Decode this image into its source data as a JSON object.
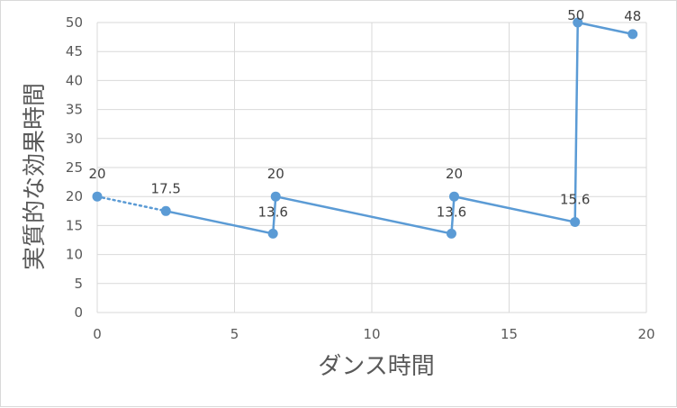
{
  "chart_data": {
    "type": "scatter",
    "title": "",
    "xlabel": "ダンス時間",
    "ylabel": "実質的な効果時間",
    "xlim": [
      0,
      20
    ],
    "ylim": [
      0,
      50
    ],
    "xticks": [
      0,
      5,
      10,
      15,
      20
    ],
    "yticks": [
      0,
      5,
      10,
      15,
      20,
      25,
      30,
      35,
      40,
      45,
      50
    ],
    "grid": true,
    "legend": "none",
    "series": [
      {
        "color": "#5b9bd5",
        "points": [
          {
            "x": 0,
            "y": 20,
            "label": "20"
          },
          {
            "x": 2.5,
            "y": 17.5,
            "label": "17.5"
          },
          {
            "x": 6.4,
            "y": 13.6,
            "label": "13.6"
          },
          {
            "x": 6.5,
            "y": 20,
            "label": "20"
          },
          {
            "x": 12.9,
            "y": 13.6,
            "label": "13.6"
          },
          {
            "x": 13.0,
            "y": 20,
            "label": "20"
          },
          {
            "x": 17.4,
            "y": 15.6,
            "label": "15.6"
          },
          {
            "x": 17.5,
            "y": 50,
            "label": "50"
          },
          {
            "x": 19.5,
            "y": 48,
            "label": "48"
          }
        ],
        "dotted_segments": [
          0
        ]
      }
    ]
  }
}
